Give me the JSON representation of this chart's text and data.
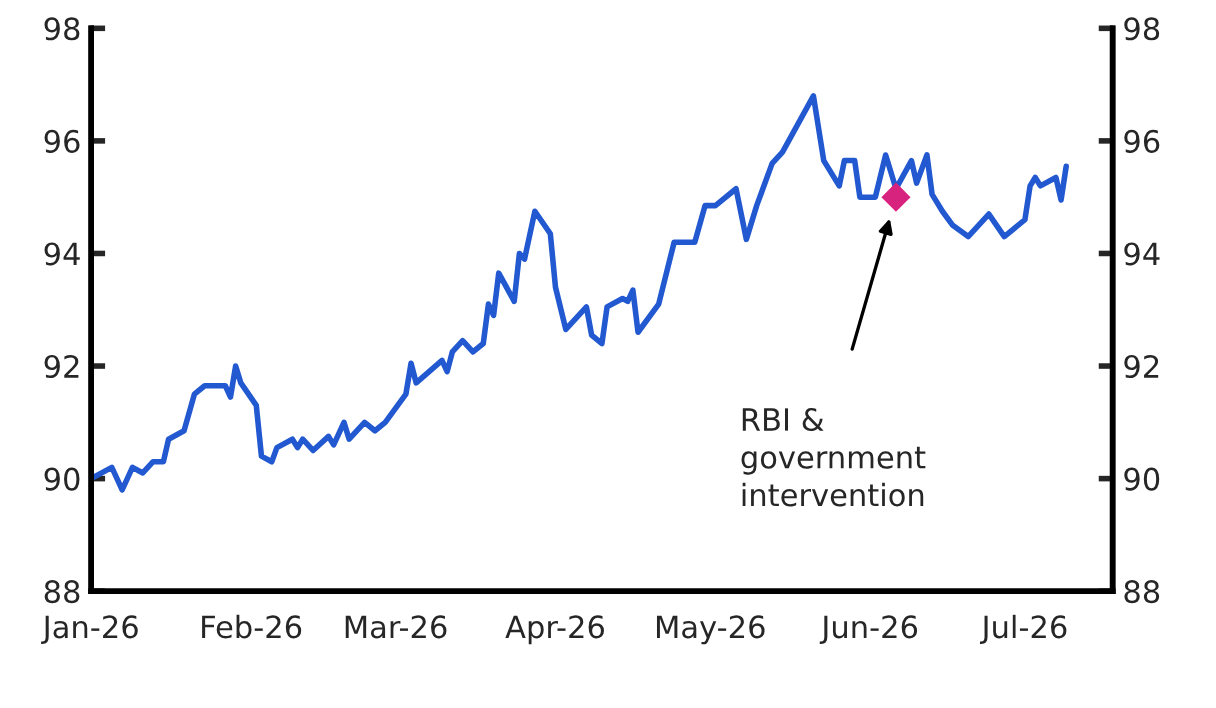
{
  "chart_data": {
    "type": "line",
    "x": [
      "2026-01-01",
      "2026-01-05",
      "2026-01-07",
      "2026-01-09",
      "2026-01-11",
      "2026-01-13",
      "2026-01-15",
      "2026-01-16",
      "2026-01-19",
      "2026-01-21",
      "2026-01-23",
      "2026-01-27",
      "2026-01-28",
      "2026-01-29",
      "2026-01-30",
      "2026-02-02",
      "2026-02-03",
      "2026-02-05",
      "2026-02-06",
      "2026-02-09",
      "2026-02-10",
      "2026-02-11",
      "2026-02-13",
      "2026-02-16",
      "2026-02-17",
      "2026-02-19",
      "2026-02-20",
      "2026-02-23",
      "2026-02-25",
      "2026-02-27",
      "2026-03-03",
      "2026-03-04",
      "2026-03-05",
      "2026-03-10",
      "2026-03-11",
      "2026-03-12",
      "2026-03-14",
      "2026-03-16",
      "2026-03-18",
      "2026-03-19",
      "2026-03-20",
      "2026-03-21",
      "2026-03-24",
      "2026-03-25",
      "2026-03-26",
      "2026-03-28",
      "2026-03-31",
      "2026-04-01",
      "2026-04-03",
      "2026-04-07",
      "2026-04-08",
      "2026-04-10",
      "2026-04-11",
      "2026-04-14",
      "2026-04-15",
      "2026-04-16",
      "2026-04-17",
      "2026-04-21",
      "2026-04-24",
      "2026-04-28",
      "2026-04-30",
      "2026-05-02",
      "2026-05-06",
      "2026-05-08",
      "2026-05-10",
      "2026-05-13",
      "2026-05-15",
      "2026-05-21",
      "2026-05-23",
      "2026-05-26",
      "2026-05-27",
      "2026-05-29",
      "2026-05-30",
      "2026-06-02",
      "2026-06-04",
      "2026-06-06",
      "2026-06-09",
      "2026-06-10",
      "2026-06-12",
      "2026-06-13",
      "2026-06-15",
      "2026-06-17",
      "2026-06-20",
      "2026-06-24",
      "2026-06-27",
      "2026-07-01",
      "2026-07-02",
      "2026-07-03",
      "2026-07-04",
      "2026-07-07",
      "2026-07-08",
      "2026-07-09"
    ],
    "series": [
      {
        "color": "#2258d0",
        "values": [
          90.0,
          90.2,
          89.8,
          90.2,
          90.1,
          90.3,
          90.3,
          90.7,
          90.85,
          91.5,
          91.65,
          91.65,
          91.45,
          92.0,
          91.7,
          91.3,
          90.4,
          90.3,
          90.55,
          90.7,
          90.55,
          90.7,
          90.5,
          90.75,
          90.6,
          91.0,
          90.7,
          91.0,
          90.85,
          91.0,
          91.5,
          92.05,
          91.7,
          92.1,
          91.9,
          92.25,
          92.45,
          92.25,
          92.4,
          93.1,
          92.9,
          93.65,
          93.15,
          94.0,
          93.9,
          94.75,
          94.35,
          93.4,
          92.65,
          93.05,
          92.55,
          92.4,
          93.05,
          93.2,
          93.15,
          93.35,
          92.6,
          93.1,
          94.2,
          94.2,
          94.85,
          94.85,
          95.15,
          94.25,
          94.85,
          95.6,
          95.8,
          96.8,
          95.65,
          95.2,
          95.65,
          95.65,
          95.0,
          95.0,
          95.75,
          95.15,
          95.65,
          95.25,
          95.75,
          95.05,
          94.75,
          94.5,
          94.3,
          94.7,
          94.3,
          94.6,
          95.2,
          95.35,
          95.2,
          95.35,
          94.95,
          95.55
        ]
      },
      {
        "type": "scatter",
        "marker": "diamond",
        "color": "#d8237e",
        "x": [
          "2026-06-06"
        ],
        "values": [
          95.0
        ]
      }
    ],
    "annotations": [
      "RBI &\ngovernment\nintervention"
    ],
    "xlim": [
      "2026-01-01",
      "2026-07-18"
    ],
    "xticks": [
      {
        "value": "2026-01-01",
        "label": "Jan-26"
      },
      {
        "value": "2026-02-01",
        "label": "Feb-26"
      },
      {
        "value": "2026-03-01",
        "label": "Mar-26"
      },
      {
        "value": "2026-04-01",
        "label": "Apr-26"
      },
      {
        "value": "2026-05-01",
        "label": "May-26"
      },
      {
        "value": "2026-06-01",
        "label": "Jun-26"
      },
      {
        "value": "2026-07-01",
        "label": "Jul-26"
      }
    ],
    "ylim": [
      88,
      98
    ],
    "yticks": [
      88,
      90,
      92,
      94,
      96,
      98
    ],
    "y2lim": [
      88,
      98
    ],
    "y2ticks": [
      88,
      90,
      92,
      94,
      96,
      98
    ],
    "grid": false,
    "legend": false,
    "marker": "none",
    "line_style": "solid"
  }
}
